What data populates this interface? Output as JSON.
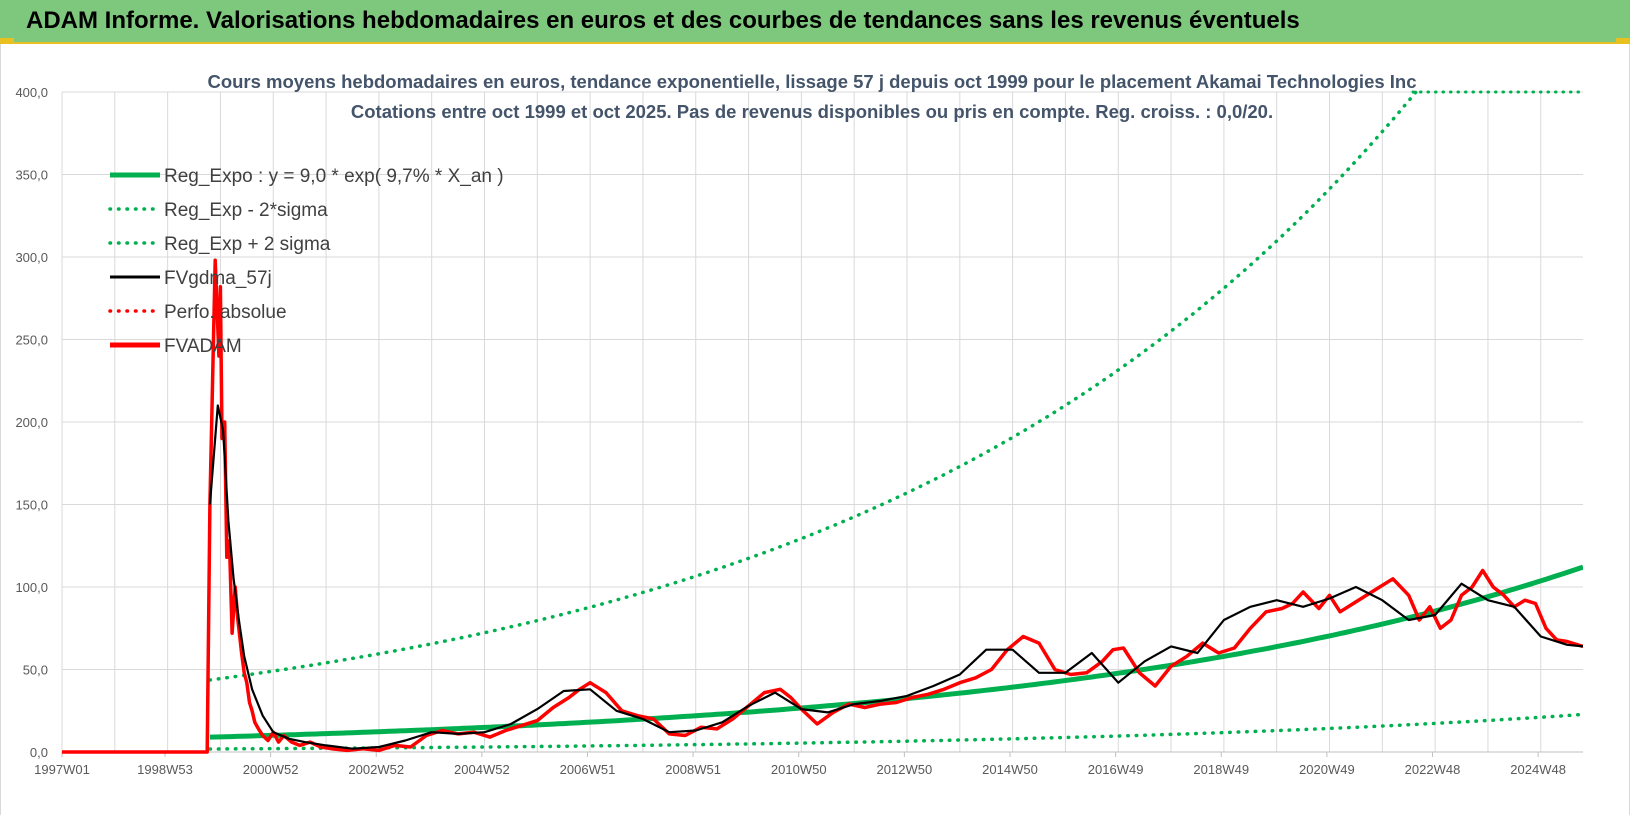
{
  "banner": {
    "title": "ADAM Informe. Valorisations hebdomadaires en euros et des courbes de tendances sans les revenus éventuels"
  },
  "colors": {
    "banner_bg": "#7ec87e",
    "accent": "#e8c020",
    "reg_expo": "#00b050",
    "reg_bands": "#00b050",
    "fvgdma": "#000000",
    "perfo": "#ff0000",
    "fvadam": "#ff0000",
    "grid": "#d9d9d9"
  },
  "chart_data": {
    "type": "line",
    "title_lines": [
      "Cours moyens hebdomadaires en euros, tendance exponentielle, lissage 57 j depuis oct 1999 pour le placement Akamai Technologies Inc",
      "Cotations entre oct 1999 et oct 2025. Pas de revenus disponibles ou pris en compte. Reg. croiss. : 0,0/20."
    ],
    "x_tick_labels": [
      "1997W01",
      "1998W53",
      "2000W52",
      "2002W52",
      "2004W52",
      "2006W51",
      "2008W51",
      "2010W50",
      "2012W50",
      "2014W50",
      "2016W49",
      "2018W49",
      "2020W49",
      "2022W48",
      "2024W48"
    ],
    "x_range": [
      1997.0,
      2025.8
    ],
    "y_tick_labels": [
      "0,0",
      "50,0",
      "100,0",
      "150,0",
      "200,0",
      "250,0",
      "300,0",
      "350,0",
      "400,0"
    ],
    "ylim": [
      0,
      400
    ],
    "grid": true,
    "legend_position": "top-left",
    "legend": [
      {
        "key": "reg_expo",
        "label": "Reg_Expo : y = 9,0 * exp( 9,7% *  X_an )",
        "style": "solid-thick",
        "color": "#00b050"
      },
      {
        "key": "reg_minus",
        "label": "Reg_Exp - 2*sigma",
        "style": "dotted",
        "color": "#00b050"
      },
      {
        "key": "reg_plus",
        "label": "Reg_Exp + 2 sigma",
        "style": "dotted",
        "color": "#00b050"
      },
      {
        "key": "fvgdma",
        "label": "FVgdma_57j",
        "style": "solid",
        "color": "#000000"
      },
      {
        "key": "perfo",
        "label": "Perfo. absolue",
        "style": "dotted",
        "color": "#ff0000"
      },
      {
        "key": "fvadam",
        "label": "FVADAM",
        "style": "solid-thick",
        "color": "#ff0000"
      }
    ],
    "regression": {
      "a": 9.0,
      "rate": 0.097,
      "start": 1999.8,
      "end": 2025.8,
      "plus_factor": 4.85,
      "minus_factor": 0.203
    },
    "series": [
      {
        "key": "fvadam",
        "x": [
          1997.0,
          1999.75,
          1999.8,
          1999.9,
          1999.97,
          2000.0,
          2000.03,
          2000.08,
          2000.12,
          2000.17,
          2000.22,
          2000.28,
          2000.33,
          2000.4,
          2000.45,
          2000.5,
          2000.55,
          2000.6,
          2000.65,
          2000.72,
          2000.8,
          2000.9,
          2001.0,
          2001.1,
          2001.2,
          2001.35,
          2001.5,
          2001.7,
          2001.9,
          2002.1,
          2002.4,
          2002.7,
          2003.0,
          2003.3,
          2003.6,
          2003.9,
          2004.2,
          2004.5,
          2004.8,
          2005.1,
          2005.4,
          2005.7,
          2006.0,
          2006.3,
          2006.6,
          2006.8,
          2007.0,
          2007.3,
          2007.6,
          2007.9,
          2008.2,
          2008.5,
          2008.8,
          2009.1,
          2009.4,
          2009.7,
          2010.0,
          2010.3,
          2010.6,
          2010.8,
          2011.0,
          2011.3,
          2011.6,
          2011.9,
          2012.2,
          2012.5,
          2012.8,
          2013.1,
          2013.4,
          2013.7,
          2014.0,
          2014.3,
          2014.6,
          2014.9,
          2015.2,
          2015.5,
          2015.8,
          2016.1,
          2016.4,
          2016.7,
          2016.9,
          2017.1,
          2017.4,
          2017.7,
          2018.0,
          2018.3,
          2018.6,
          2018.9,
          2019.2,
          2019.5,
          2019.8,
          2020.1,
          2020.3,
          2020.5,
          2020.8,
          2021.0,
          2021.2,
          2021.5,
          2021.8,
          2022.0,
          2022.2,
          2022.5,
          2022.7,
          2022.9,
          2023.1,
          2023.3,
          2023.5,
          2023.7,
          2023.9,
          2024.1,
          2024.3,
          2024.5,
          2024.7,
          2024.9,
          2025.1,
          2025.3,
          2025.5,
          2025.8
        ],
        "values": [
          0,
          0,
          150,
          298,
          240,
          282,
          190,
          200,
          118,
          128,
          72,
          100,
          80,
          60,
          48,
          42,
          30,
          25,
          18,
          14,
          10,
          7,
          12,
          6,
          10,
          6,
          4,
          6,
          3,
          2,
          1,
          2,
          1,
          4,
          3,
          10,
          13,
          11,
          12,
          9,
          13,
          16,
          19,
          27,
          33,
          38,
          42,
          36,
          25,
          22,
          20,
          11,
          10,
          15,
          14,
          20,
          28,
          36,
          38,
          33,
          26,
          17,
          24,
          29,
          27,
          29,
          30,
          33,
          35,
          38,
          42,
          45,
          50,
          62,
          70,
          66,
          50,
          47,
          48,
          55,
          62,
          63,
          48,
          40,
          52,
          58,
          66,
          60,
          63,
          75,
          85,
          87,
          90,
          97,
          87,
          95,
          85,
          91,
          97,
          101,
          105,
          95,
          80,
          88,
          75,
          80,
          95,
          100,
          110,
          100,
          95,
          88,
          92,
          90,
          75,
          68,
          67,
          64
        ]
      },
      {
        "key": "fvgdma",
        "x": [
          1999.8,
          1999.95,
          2000.05,
          2000.15,
          2000.25,
          2000.35,
          2000.45,
          2000.6,
          2000.8,
          2001.0,
          2001.3,
          2001.6,
          2002.0,
          2002.5,
          2003.0,
          2003.5,
          2004.0,
          2004.5,
          2005.0,
          2005.5,
          2006.0,
          2006.5,
          2007.0,
          2007.5,
          2008.0,
          2008.5,
          2009.0,
          2009.5,
          2010.0,
          2010.5,
          2011.0,
          2011.5,
          2012.0,
          2012.5,
          2013.0,
          2013.5,
          2014.0,
          2014.5,
          2015.0,
          2015.5,
          2016.0,
          2016.5,
          2017.0,
          2017.5,
          2018.0,
          2018.5,
          2019.0,
          2019.5,
          2020.0,
          2020.5,
          2021.0,
          2021.5,
          2022.0,
          2022.5,
          2023.0,
          2023.5,
          2024.0,
          2024.5,
          2025.0,
          2025.5,
          2025.8
        ],
        "values": [
          150,
          210,
          195,
          140,
          105,
          80,
          58,
          38,
          22,
          12,
          8,
          6,
          4,
          2,
          3,
          7,
          12,
          11,
          12,
          17,
          26,
          37,
          38,
          25,
          20,
          12,
          13,
          18,
          28,
          36,
          26,
          24,
          29,
          31,
          34,
          40,
          47,
          62,
          62,
          48,
          48,
          60,
          42,
          55,
          64,
          60,
          80,
          88,
          92,
          88,
          93,
          100,
          92,
          80,
          83,
          102,
          92,
          88,
          70,
          65,
          64
        ]
      }
    ]
  }
}
